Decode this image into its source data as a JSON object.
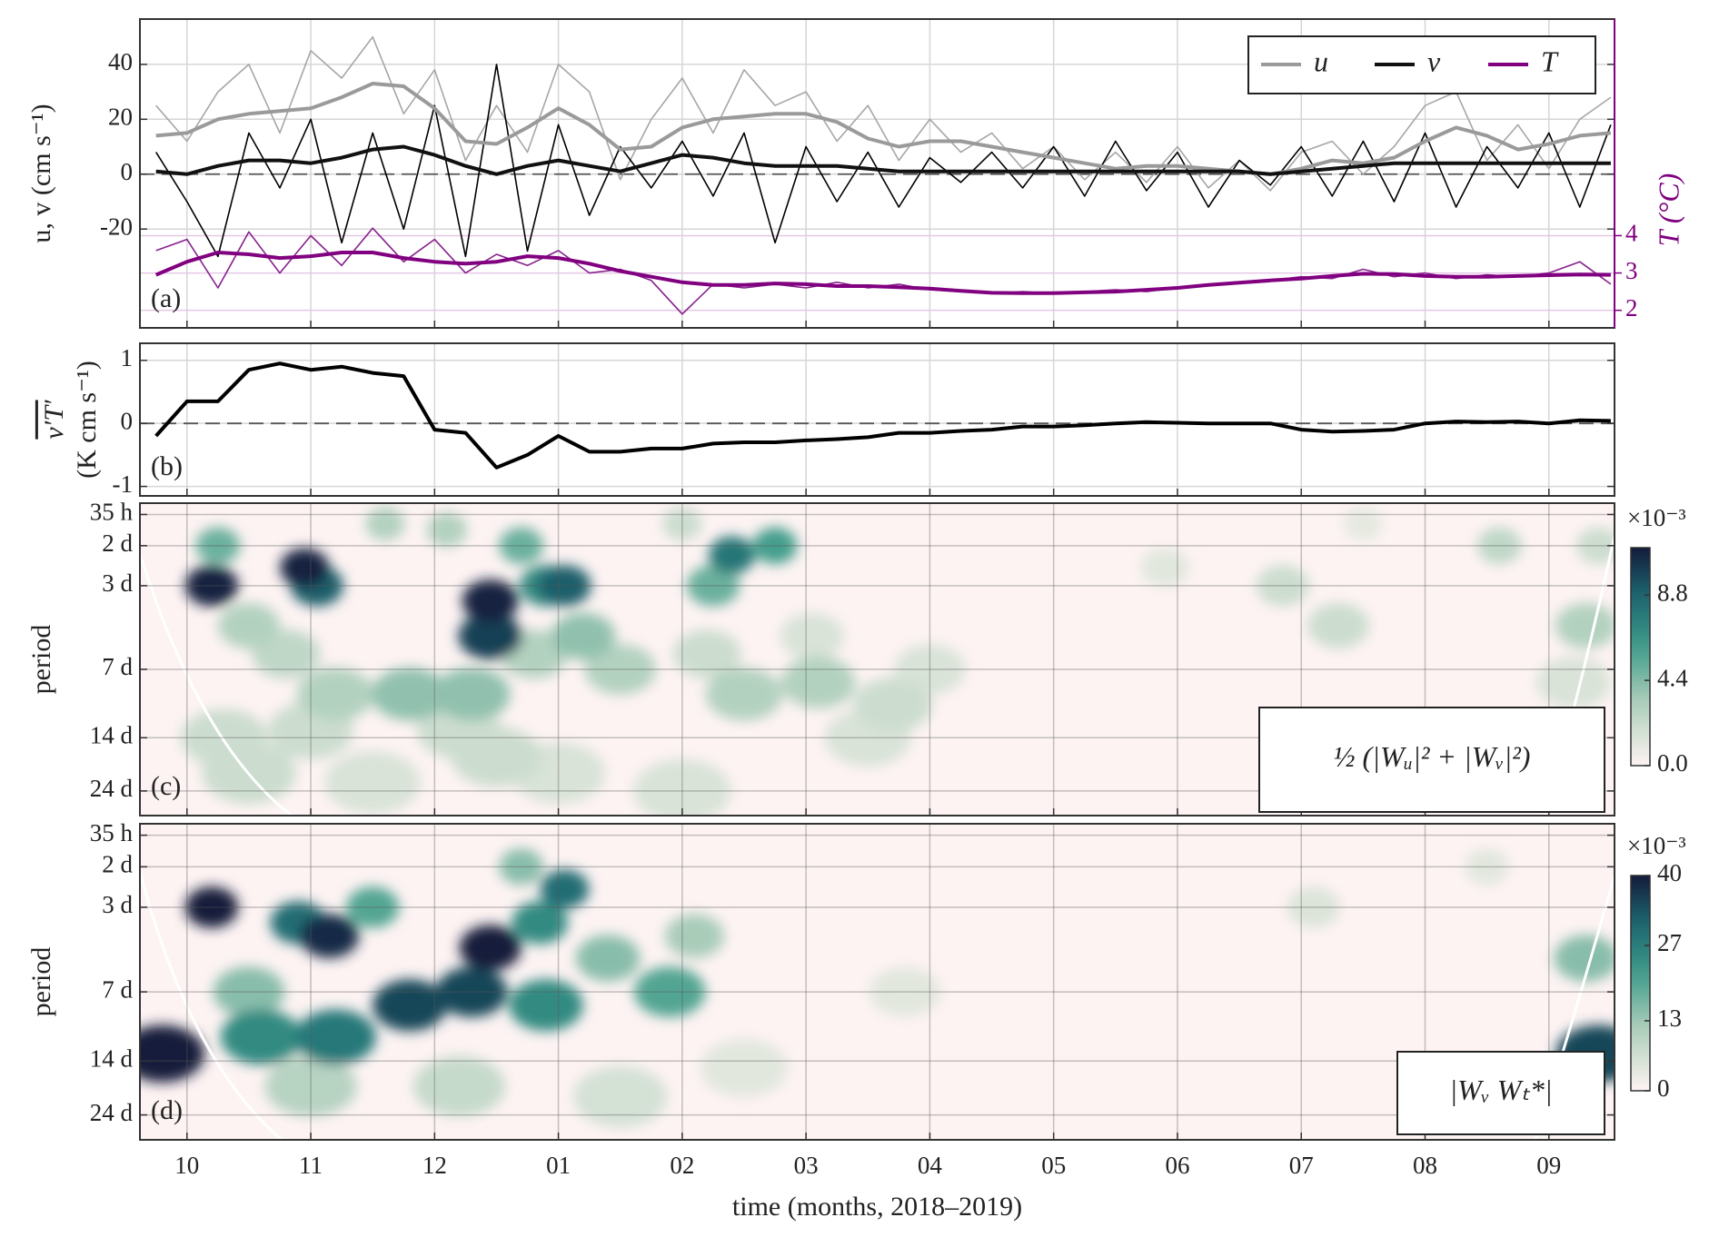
{
  "chart_data": [
    {
      "type": "line",
      "panel_label": "(a)",
      "ylabel": "u, v (cm s⁻¹)",
      "y2label": "T (°C)",
      "y2color": "#800080",
      "xlim": [
        9.62,
        21.53
      ],
      "ylim": [
        -56,
        56.5
      ],
      "yticks": [
        -20,
        0,
        20,
        40
      ],
      "y2lim": [
        1.53,
        9.8
      ],
      "y2ticks": [
        2,
        3,
        4
      ],
      "grid": true,
      "legend": "upper right",
      "x": [
        9.75,
        10,
        10.25,
        10.5,
        10.75,
        11,
        11.25,
        11.5,
        11.75,
        12,
        12.25,
        12.5,
        12.75,
        13,
        13.25,
        13.5,
        13.75,
        14,
        14.25,
        14.5,
        14.75,
        15,
        15.25,
        15.5,
        15.75,
        16,
        16.25,
        16.5,
        16.75,
        17,
        17.25,
        17.5,
        17.75,
        18,
        18.25,
        18.5,
        18.75,
        19,
        19.25,
        19.5,
        19.75,
        20,
        20.25,
        20.5,
        20.75,
        21,
        21.25,
        21.5
      ],
      "series": [
        {
          "color": "#a6a6a6",
          "linewidth": 1.6,
          "values": [
            25,
            12,
            30,
            40,
            15,
            45,
            35,
            50,
            22,
            38,
            5,
            25,
            8,
            40,
            30,
            -2,
            20,
            35,
            15,
            38,
            25,
            30,
            12,
            25,
            5,
            20,
            8,
            15,
            2,
            10,
            -2,
            8,
            -3,
            10,
            -5,
            5,
            -6,
            8,
            12,
            0,
            10,
            25,
            30,
            5,
            18,
            2,
            20,
            28
          ]
        },
        {
          "color": "#000000",
          "linewidth": 1.6,
          "values": [
            8,
            -10,
            -30,
            15,
            -5,
            20,
            -25,
            15,
            -20,
            25,
            -30,
            40,
            -28,
            18,
            -15,
            10,
            -5,
            12,
            -8,
            15,
            -25,
            10,
            -10,
            8,
            -12,
            6,
            -3,
            8,
            -5,
            10,
            -8,
            12,
            -6,
            8,
            -12,
            5,
            -4,
            10,
            -8,
            12,
            -10,
            15,
            -12,
            10,
            -5,
            15,
            -12,
            18
          ]
        },
        {
          "color": "#86208c",
          "linewidth": 1.6,
          "axis": "y2",
          "values": [
            3.6,
            3.9,
            2.6,
            4.1,
            3.0,
            4.0,
            3.2,
            4.2,
            3.3,
            3.9,
            3.0,
            3.5,
            3.2,
            3.6,
            3.0,
            3.1,
            2.8,
            1.9,
            2.7,
            2.6,
            2.7,
            2.6,
            2.75,
            2.6,
            2.7,
            2.55,
            2.5,
            2.45,
            2.5,
            2.45,
            2.5,
            2.55,
            2.5,
            2.6,
            2.7,
            2.75,
            2.8,
            2.9,
            2.85,
            3.1,
            2.9,
            3.0,
            2.85,
            2.95,
            2.9,
            3.0,
            3.3,
            2.7
          ]
        },
        {
          "name": "u",
          "color": "#9a9a9a",
          "linewidth": 4,
          "values": [
            14,
            15,
            20,
            22,
            23,
            24,
            28,
            33,
            32,
            24,
            12,
            11,
            17,
            24,
            18,
            9,
            10,
            17,
            20,
            21,
            22,
            22,
            19,
            13,
            10,
            12,
            12,
            10,
            8,
            6,
            4,
            2,
            3,
            3,
            2,
            1,
            0,
            2,
            5,
            4,
            6,
            12,
            17,
            14,
            9,
            11,
            14,
            15
          ]
        },
        {
          "name": "v",
          "color": "#111111",
          "linewidth": 4,
          "values": [
            1,
            0,
            3,
            5,
            5,
            4,
            6,
            9,
            10,
            7,
            3,
            0,
            3,
            5,
            3,
            1,
            4,
            7,
            6,
            4,
            3,
            3,
            3,
            2,
            1,
            1,
            1,
            1,
            1,
            1,
            1,
            1,
            1,
            1,
            1,
            1,
            0,
            1,
            2,
            3,
            4,
            4,
            4,
            4,
            4,
            4,
            4,
            4
          ]
        },
        {
          "name": "T",
          "color": "#800080",
          "linewidth": 4,
          "axis": "y2",
          "values": [
            2.95,
            3.3,
            3.55,
            3.5,
            3.4,
            3.45,
            3.55,
            3.55,
            3.4,
            3.3,
            3.25,
            3.3,
            3.45,
            3.4,
            3.25,
            3.05,
            2.9,
            2.75,
            2.68,
            2.68,
            2.72,
            2.7,
            2.65,
            2.65,
            2.62,
            2.58,
            2.52,
            2.47,
            2.46,
            2.46,
            2.48,
            2.5,
            2.55,
            2.6,
            2.68,
            2.74,
            2.8,
            2.85,
            2.92,
            2.98,
            2.97,
            2.92,
            2.9,
            2.9,
            2.92,
            2.94,
            2.96,
            2.95
          ]
        }
      ]
    },
    {
      "type": "line",
      "panel_label": "(b)",
      "ylabel": [
        "v′T′",
        "(K cm s⁻¹)"
      ],
      "xlim": [
        9.62,
        21.53
      ],
      "ylim": [
        -1.15,
        1.27
      ],
      "yticks": [
        -1,
        0,
        1
      ],
      "grid": true,
      "color": "#000000",
      "x": [
        9.75,
        10,
        10.25,
        10.5,
        10.75,
        11,
        11.25,
        11.5,
        11.75,
        12,
        12.25,
        12.5,
        12.75,
        13,
        13.25,
        13.5,
        13.75,
        14,
        14.25,
        14.5,
        14.75,
        15,
        15.25,
        15.5,
        15.75,
        16,
        16.25,
        16.5,
        16.75,
        17,
        17.25,
        17.5,
        17.75,
        18,
        18.25,
        18.5,
        18.75,
        19,
        19.25,
        19.5,
        19.75,
        20,
        20.25,
        20.5,
        20.75,
        21,
        21.25,
        21.5
      ],
      "values": [
        -0.2,
        0.35,
        0.35,
        0.85,
        0.95,
        0.85,
        0.9,
        0.8,
        0.75,
        -0.1,
        -0.15,
        -0.7,
        -0.5,
        -0.2,
        -0.45,
        -0.45,
        -0.4,
        -0.4,
        -0.32,
        -0.3,
        -0.3,
        -0.27,
        -0.25,
        -0.22,
        -0.15,
        -0.15,
        -0.12,
        -0.1,
        -0.05,
        -0.05,
        -0.03,
        0,
        0.02,
        0.01,
        0,
        0,
        0,
        -0.1,
        -0.13,
        -0.12,
        -0.1,
        0,
        0.03,
        0.02,
        0.03,
        0,
        0.05,
        0.04
      ]
    },
    {
      "type": "contour",
      "panel_label": "(c)",
      "ylabel": "period",
      "annotation": "½ (|Wᵤ|² + |Wᵥ|²)",
      "xlim": [
        9.62,
        21.53
      ],
      "ylim": [
        1.3,
        30.8
      ],
      "yscale": "log",
      "yinvert": true,
      "grid": true,
      "yticks": [
        {
          "value": 1.458,
          "label": "35 h"
        },
        {
          "value": 2,
          "label": "2 d"
        },
        {
          "value": 3,
          "label": "3 d"
        },
        {
          "value": 7,
          "label": "7 d"
        },
        {
          "value": 14,
          "label": "14 d"
        },
        {
          "value": 24,
          "label": "24 d"
        }
      ],
      "clim": [
        0,
        11.25
      ],
      "cticks": [
        {
          "value": 0,
          "label": "0.0"
        },
        4.4,
        8.8
      ],
      "clabel": "×10⁻³",
      "cells": {
        "x": [
          19.5,
          17.9,
          13,
          11.5,
          14,
          15.05,
          16,
          15.5,
          21.2,
          10.3,
          11,
          12.2,
          15.7,
          18.85,
          19.3,
          21.4,
          14,
          14.2,
          10.5,
          12.5,
          20.6,
          10.8,
          10.5,
          11.2,
          13.5,
          14.5,
          15.1,
          21.3,
          11.6,
          12.1,
          12.8,
          11.8,
          12.3,
          13.2,
          10.25,
          14.25,
          12.7,
          14.75,
          12.9,
          14.4,
          11.05,
          13.05,
          12.45,
          10.2,
          10.95,
          12.45
        ],
        "period": [
          1.6,
          2.5,
          20,
          22,
          24,
          5,
          7,
          14,
          8,
          14,
          13,
          13,
          10,
          3,
          4.5,
          2,
          1.6,
          6,
          20,
          17,
          2,
          6,
          4.5,
          9,
          7,
          9,
          8,
          4.5,
          1.6,
          1.7,
          6,
          9,
          9,
          5,
          2,
          3,
          2,
          2,
          3,
          2.2,
          3,
          3,
          5,
          3,
          2.5,
          3.5
        ],
        "values": [
          1,
          1.2,
          1.5,
          1.5,
          1.5,
          1.5,
          1.5,
          1.5,
          1.5,
          2,
          2,
          2,
          2,
          2,
          2,
          2,
          2,
          2,
          2,
          2,
          2.5,
          2.5,
          3,
          3,
          3,
          3,
          3,
          3,
          3,
          3,
          3,
          4,
          4,
          4,
          5,
          5,
          5,
          6,
          7,
          8,
          9,
          9,
          10,
          11,
          11,
          11
        ]
      }
    },
    {
      "type": "contour",
      "panel_label": "(d)",
      "ylabel": "period",
      "annotation": "|Wᵥ Wₜ*|",
      "xlabel": "time (months, 2018–2019)",
      "xlim": [
        9.62,
        21.53
      ],
      "ylim": [
        1.3,
        30.8
      ],
      "yscale": "log",
      "yinvert": true,
      "grid": true,
      "xticks": [
        10,
        11,
        12,
        {
          "value": 13,
          "label": "01"
        },
        {
          "value": 14,
          "label": "02"
        },
        {
          "value": 15,
          "label": "03"
        },
        {
          "value": 16,
          "label": "04"
        },
        {
          "value": 17,
          "label": "05"
        },
        {
          "value": 18,
          "label": "06"
        },
        {
          "value": 19,
          "label": "07"
        },
        {
          "value": 20,
          "label": "08"
        },
        {
          "value": 21,
          "label": "09"
        }
      ],
      "yticks": [
        {
          "value": 1.458,
          "label": "35 h"
        },
        {
          "value": 2,
          "label": "2 d"
        },
        {
          "value": 3,
          "label": "3 d"
        },
        {
          "value": 7,
          "label": "7 d"
        },
        {
          "value": 14,
          "label": "14 d"
        },
        {
          "value": 24,
          "label": "24 d"
        }
      ],
      "clim": [
        0,
        40
      ],
      "cticks": [
        0,
        13,
        27,
        40
      ],
      "clabel": "×10⁻³",
      "cells": {
        "x": [
          20.5,
          14.5,
          15.8,
          19.1,
          13.5,
          12.2,
          11,
          14.1,
          12.7,
          13.4,
          10.5,
          21.3,
          11.5,
          13.9,
          10.6,
          12.85,
          12.9,
          11.2,
          10.9,
          13.05,
          11.8,
          12.3,
          21.4,
          11.15,
          9.8,
          10.2,
          12.45
        ],
        "period": [
          2,
          15,
          7,
          3,
          20,
          18,
          18,
          4,
          2,
          5,
          7,
          5,
          3,
          7,
          11,
          3.5,
          8,
          11,
          3.5,
          2.5,
          8,
          7,
          13,
          4,
          13,
          3,
          4.5
        ],
        "values": [
          4,
          4,
          4,
          5,
          6,
          8,
          10,
          12,
          15,
          15,
          15,
          15,
          20,
          20,
          25,
          25,
          25,
          28,
          30,
          30,
          35,
          35,
          35,
          38,
          40,
          40,
          40
        ]
      }
    }
  ]
}
